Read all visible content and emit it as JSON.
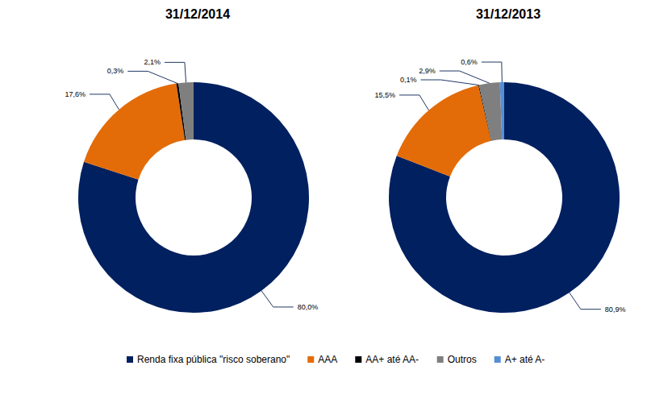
{
  "chart_data": [
    {
      "type": "pie",
      "title": "31/12/2014",
      "categories": [
        "Renda fixa pública \"risco soberano\"",
        "AAA",
        "AA+ até AA-",
        "Outros"
      ],
      "values": [
        80.0,
        17.6,
        0.3,
        2.1
      ],
      "value_labels": [
        "80,0%",
        "17,6%",
        "0,3%",
        "2,1%"
      ],
      "colors": [
        "#002060",
        "#E36C09",
        "#000000",
        "#7F7F7F"
      ],
      "data_labels": true,
      "legend": "bottom"
    },
    {
      "type": "pie",
      "title": "31/12/2013",
      "categories": [
        "Renda fixa pública \"risco soberano\"",
        "AAA",
        "AA+ até AA-",
        "Outros",
        "A+ até A-"
      ],
      "values": [
        80.9,
        15.5,
        0.1,
        2.9,
        0.6
      ],
      "value_labels": [
        "80,9%",
        "15,5%",
        "0,1%",
        "2,9%",
        "0,6%"
      ],
      "colors": [
        "#002060",
        "#E36C09",
        "#000000",
        "#7F7F7F",
        "#558ED5"
      ],
      "data_labels": true,
      "legend": "bottom"
    }
  ]
}
